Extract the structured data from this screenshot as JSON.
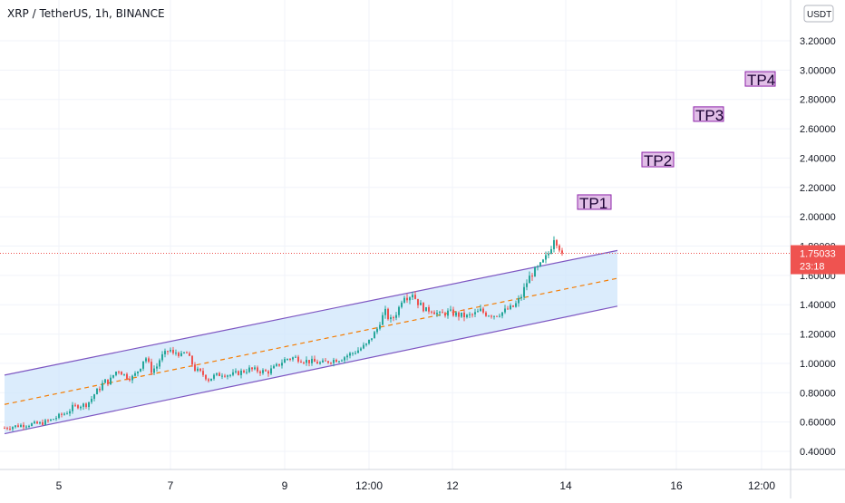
{
  "header": {
    "symbol_title": "XRP / TetherUS, 1h, BINANCE"
  },
  "price_scale": {
    "currency_badge": "USDT"
  },
  "current_price": {
    "price_label": "1.75033",
    "countdown_label": "23:18"
  },
  "colors": {
    "up": "#26a69a",
    "down": "#ef5350",
    "channel_line": "#7e57c2",
    "channel_fill": "#cfe6fb",
    "midline": "#f57c00",
    "tp_fill": "#e1bee7",
    "tp_stroke": "#8e24aa",
    "grid": "#f0f3fa",
    "price_line": "#ef5350"
  },
  "chart_data": {
    "type": "candlestick",
    "title": "XRP / TetherUS, 1h, BINANCE",
    "y_ticks": [
      "3.20000",
      "3.00000",
      "2.80000",
      "2.60000",
      "2.40000",
      "2.20000",
      "2.00000",
      "1.80000",
      "1.60000",
      "1.40000",
      "1.20000",
      "1.00000",
      "0.80000",
      "0.60000",
      "0.40000"
    ],
    "y_range": [
      0.4,
      3.2
    ],
    "x_ticks": [
      "5",
      "7",
      "9",
      "12:00",
      "12",
      "14",
      "16",
      "12:00"
    ],
    "last_price": 1.75033,
    "price_path": [
      [
        0,
        0.56
      ],
      [
        20,
        0.58
      ],
      [
        40,
        0.59
      ],
      [
        50,
        0.61
      ],
      [
        60,
        0.64
      ],
      [
        70,
        0.67
      ],
      [
        75,
        0.7
      ],
      [
        80,
        0.71
      ],
      [
        90,
        0.72
      ],
      [
        95,
        0.75
      ],
      [
        100,
        0.8
      ],
      [
        105,
        0.83
      ],
      [
        110,
        0.88
      ],
      [
        115,
        0.87
      ],
      [
        120,
        0.92
      ],
      [
        125,
        0.96
      ],
      [
        130,
        0.93
      ],
      [
        135,
        0.91
      ],
      [
        140,
        0.9
      ],
      [
        145,
        0.93
      ],
      [
        150,
        0.98
      ],
      [
        155,
        1.05
      ],
      [
        158,
        1.01
      ],
      [
        162,
        0.95
      ],
      [
        168,
        0.98
      ],
      [
        172,
        1.04
      ],
      [
        178,
        1.07
      ],
      [
        182,
        1.1
      ],
      [
        186,
        1.06
      ],
      [
        190,
        1.08
      ],
      [
        195,
        1.05
      ],
      [
        200,
        1.08
      ],
      [
        205,
        1.02
      ],
      [
        210,
        0.96
      ],
      [
        215,
        0.94
      ],
      [
        220,
        0.92
      ],
      [
        225,
        0.89
      ],
      [
        230,
        0.91
      ],
      [
        240,
        0.93
      ],
      [
        250,
        0.92
      ],
      [
        260,
        0.94
      ],
      [
        270,
        0.96
      ],
      [
        280,
        0.95
      ],
      [
        290,
        0.94
      ],
      [
        300,
        0.98
      ],
      [
        310,
        1.03
      ],
      [
        320,
        1.04
      ],
      [
        330,
        1.02
      ],
      [
        340,
        1.01
      ],
      [
        350,
        1.0
      ],
      [
        360,
        1.02
      ],
      [
        370,
        1.03
      ],
      [
        380,
        1.06
      ],
      [
        390,
        1.09
      ],
      [
        400,
        1.13
      ],
      [
        405,
        1.18
      ],
      [
        410,
        1.22
      ],
      [
        415,
        1.3
      ],
      [
        420,
        1.35
      ],
      [
        425,
        1.29
      ],
      [
        430,
        1.32
      ],
      [
        435,
        1.38
      ],
      [
        440,
        1.47
      ],
      [
        445,
        1.45
      ],
      [
        450,
        1.48
      ],
      [
        455,
        1.42
      ],
      [
        460,
        1.39
      ],
      [
        465,
        1.36
      ],
      [
        470,
        1.37
      ],
      [
        475,
        1.35
      ],
      [
        480,
        1.33
      ],
      [
        490,
        1.35
      ],
      [
        500,
        1.33
      ],
      [
        510,
        1.32
      ],
      [
        520,
        1.34
      ],
      [
        525,
        1.36
      ],
      [
        530,
        1.34
      ],
      [
        540,
        1.33
      ],
      [
        550,
        1.35
      ],
      [
        555,
        1.37
      ],
      [
        560,
        1.38
      ],
      [
        565,
        1.41
      ],
      [
        570,
        1.46
      ],
      [
        575,
        1.54
      ],
      [
        580,
        1.6
      ],
      [
        585,
        1.63
      ],
      [
        590,
        1.66
      ],
      [
        595,
        1.7
      ],
      [
        600,
        1.75
      ],
      [
        603,
        1.8
      ],
      [
        606,
        1.86
      ],
      [
        609,
        1.83
      ],
      [
        612,
        1.79
      ],
      [
        615,
        1.76
      ]
    ],
    "channel": {
      "upper": [
        [
          0,
          0.92
        ],
        [
          676,
          1.77
        ]
      ],
      "lower": [
        [
          0,
          0.52
        ],
        [
          676,
          1.39
        ]
      ],
      "mid": [
        [
          0,
          0.72
        ],
        [
          676,
          1.58
        ]
      ]
    },
    "targets": [
      {
        "label": "TP1",
        "price": 2.1,
        "bar_start": 632,
        "bar_end": 669
      },
      {
        "label": "TP2",
        "price": 2.39,
        "bar_start": 703,
        "bar_end": 738
      },
      {
        "label": "TP3",
        "price": 2.7,
        "bar_start": 760,
        "bar_end": 793
      },
      {
        "label": "TP4",
        "price": 2.94,
        "bar_start": 817,
        "bar_end": 850
      }
    ]
  }
}
